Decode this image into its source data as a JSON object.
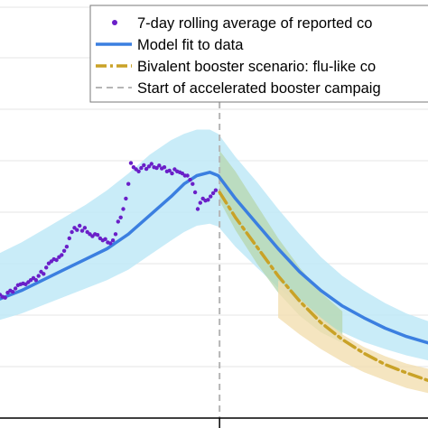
{
  "chart_data": {
    "type": "line",
    "title": "",
    "xlabel": "",
    "ylabel": "",
    "grid": true,
    "legend_position": "top-right",
    "colors": {
      "observed": "#6a1fc8",
      "model": "#3b7fe0",
      "model_band": "#bfe9f7",
      "scenario": "#c9a227",
      "scenario_band_green": "#b6d7ad",
      "scenario_band_yellow": "#f3dfb0",
      "campaign_line": "#b5b5b5",
      "grid": "#e5e5e5"
    },
    "campaign_start_x": 0.513,
    "series": [
      {
        "name": "7-day rolling average of reported co",
        "kind": "points",
        "x": [
          0.0,
          0.006,
          0.012,
          0.018,
          0.024,
          0.03,
          0.036,
          0.042,
          0.048,
          0.054,
          0.06,
          0.066,
          0.072,
          0.078,
          0.084,
          0.09,
          0.096,
          0.102,
          0.108,
          0.114,
          0.12,
          0.126,
          0.132,
          0.138,
          0.144,
          0.15,
          0.156,
          0.162,
          0.168,
          0.174,
          0.18,
          0.186,
          0.192,
          0.198,
          0.204,
          0.21,
          0.216,
          0.222,
          0.228,
          0.234,
          0.24,
          0.246,
          0.252,
          0.258,
          0.264,
          0.27,
          0.276,
          0.282,
          0.288,
          0.294,
          0.3,
          0.306,
          0.312,
          0.318,
          0.324,
          0.33,
          0.336,
          0.342,
          0.348,
          0.354,
          0.36,
          0.366,
          0.372,
          0.378,
          0.384,
          0.39,
          0.396,
          0.402,
          0.408,
          0.414,
          0.42,
          0.426,
          0.432,
          0.438,
          0.444,
          0.45,
          0.456,
          0.462,
          0.468,
          0.474,
          0.48,
          0.486,
          0.492,
          0.498,
          0.504
        ],
        "y": [
          0.295,
          0.29,
          0.288,
          0.3,
          0.305,
          0.302,
          0.31,
          0.318,
          0.32,
          0.322,
          0.32,
          0.325,
          0.33,
          0.335,
          0.33,
          0.34,
          0.35,
          0.345,
          0.36,
          0.37,
          0.375,
          0.38,
          0.378,
          0.385,
          0.39,
          0.4,
          0.41,
          0.43,
          0.445,
          0.455,
          0.45,
          0.46,
          0.448,
          0.455,
          0.445,
          0.44,
          0.435,
          0.44,
          0.438,
          0.43,
          0.425,
          0.428,
          0.42,
          0.418,
          0.425,
          0.44,
          0.47,
          0.48,
          0.5,
          0.525,
          0.56,
          0.61,
          0.6,
          0.595,
          0.59,
          0.598,
          0.605,
          0.596,
          0.602,
          0.608,
          0.6,
          0.598,
          0.604,
          0.597,
          0.6,
          0.59,
          0.592,
          0.585,
          0.595,
          0.59,
          0.588,
          0.585,
          0.58,
          0.58,
          0.57,
          0.56,
          0.54,
          0.5,
          0.515,
          0.525,
          0.52,
          0.522,
          0.53,
          0.538,
          0.545
        ]
      },
      {
        "name": "Model fit to data",
        "kind": "line",
        "x": [
          0.0,
          0.05,
          0.1,
          0.15,
          0.2,
          0.25,
          0.3,
          0.35,
          0.4,
          0.43,
          0.46,
          0.49,
          0.51,
          0.55,
          0.6,
          0.65,
          0.7,
          0.75,
          0.8,
          0.85,
          0.9,
          0.95,
          1.0
        ],
        "y": [
          0.285,
          0.305,
          0.33,
          0.355,
          0.38,
          0.405,
          0.44,
          0.485,
          0.53,
          0.56,
          0.58,
          0.588,
          0.58,
          0.525,
          0.465,
          0.405,
          0.35,
          0.305,
          0.268,
          0.24,
          0.215,
          0.195,
          0.18
        ]
      },
      {
        "name": "Model fit to data (uncertainty)",
        "kind": "band",
        "x": [
          0.0,
          0.05,
          0.1,
          0.15,
          0.2,
          0.25,
          0.3,
          0.35,
          0.4,
          0.43,
          0.46,
          0.49,
          0.51,
          0.55,
          0.6,
          0.65,
          0.7,
          0.75,
          0.8,
          0.85,
          0.9,
          0.95,
          1.0
        ],
        "lower": [
          0.235,
          0.25,
          0.27,
          0.29,
          0.31,
          0.33,
          0.355,
          0.39,
          0.425,
          0.445,
          0.46,
          0.465,
          0.458,
          0.41,
          0.36,
          0.312,
          0.27,
          0.235,
          0.205,
          0.182,
          0.165,
          0.15,
          0.138
        ],
        "upper": [
          0.395,
          0.42,
          0.45,
          0.48,
          0.51,
          0.545,
          0.585,
          0.63,
          0.665,
          0.68,
          0.69,
          0.69,
          0.68,
          0.625,
          0.565,
          0.5,
          0.44,
          0.385,
          0.34,
          0.305,
          0.275,
          0.25,
          0.232
        ]
      },
      {
        "name": "Bivalent booster scenario: flu-like co",
        "kind": "dashed-line",
        "x": [
          0.513,
          0.55,
          0.6,
          0.65,
          0.7,
          0.75,
          0.8,
          0.85,
          0.9,
          0.95,
          1.0
        ],
        "y": [
          0.54,
          0.48,
          0.41,
          0.34,
          0.28,
          0.228,
          0.188,
          0.155,
          0.128,
          0.108,
          0.09
        ]
      },
      {
        "name": "Bivalent booster scenario (green band)",
        "kind": "band",
        "x": [
          0.513,
          0.55,
          0.6,
          0.65,
          0.7,
          0.75,
          0.8
        ],
        "lower": [
          0.52,
          0.45,
          0.37,
          0.3,
          0.245,
          0.205,
          0.18
        ],
        "upper": [
          0.64,
          0.59,
          0.51,
          0.43,
          0.36,
          0.3,
          0.255
        ]
      },
      {
        "name": "Bivalent booster scenario (yellow band)",
        "kind": "band",
        "x": [
          0.65,
          0.7,
          0.75,
          0.8,
          0.85,
          0.9,
          0.95,
          1.0
        ],
        "lower": [
          0.24,
          0.2,
          0.165,
          0.135,
          0.11,
          0.09,
          0.072,
          0.06
        ],
        "upper": [
          0.33,
          0.285,
          0.24,
          0.2,
          0.17,
          0.148,
          0.13,
          0.118
        ]
      }
    ],
    "legend": [
      {
        "label": "7-day rolling average of reported co",
        "marker": "dot"
      },
      {
        "label": "Model fit to data",
        "marker": "solid"
      },
      {
        "label": "Bivalent booster scenario: flu-like co",
        "marker": "dashdot"
      },
      {
        "label": "Start of accelerated booster campaig",
        "marker": "dashed-gray"
      }
    ]
  }
}
